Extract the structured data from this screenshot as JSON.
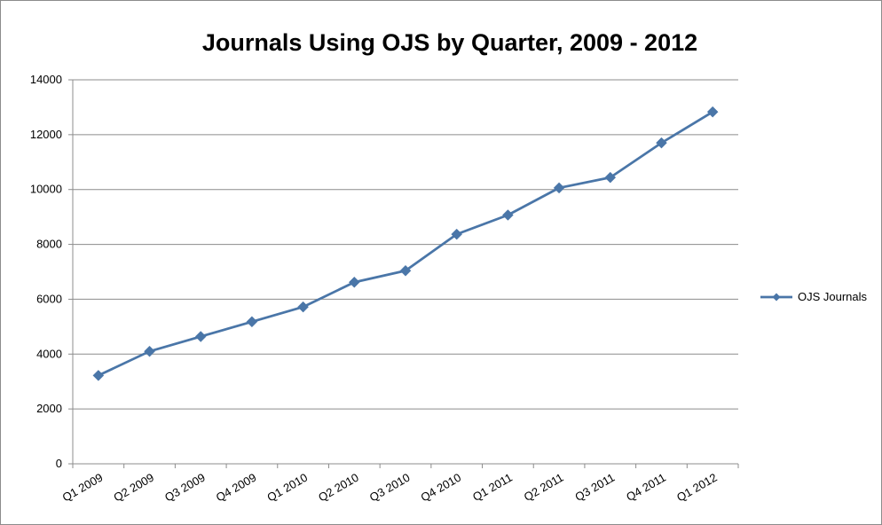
{
  "chart_data": {
    "type": "line",
    "title": "Journals Using OJS by Quarter, 2009 - 2012",
    "xlabel": "",
    "ylabel": "",
    "categories": [
      "Q1 2009",
      "Q2 2009",
      "Q3 2009",
      "Q4 2009",
      "Q1 2010",
      "Q2 2010",
      "Q3 2010",
      "Q4 2010",
      "Q1 2011",
      "Q2 2011",
      "Q3 2011",
      "Q4 2011",
      "Q1 2012"
    ],
    "series": [
      {
        "name": "OJS Journals",
        "color": "#4a76a8",
        "values": [
          3220,
          4100,
          4640,
          5180,
          5720,
          6620,
          7040,
          8370,
          9070,
          10060,
          10440,
          11700,
          12830
        ]
      }
    ],
    "ylim": [
      0,
      14000
    ],
    "yticks": [
      0,
      2000,
      4000,
      6000,
      8000,
      10000,
      12000,
      14000
    ],
    "grid": true,
    "legend": "right"
  }
}
